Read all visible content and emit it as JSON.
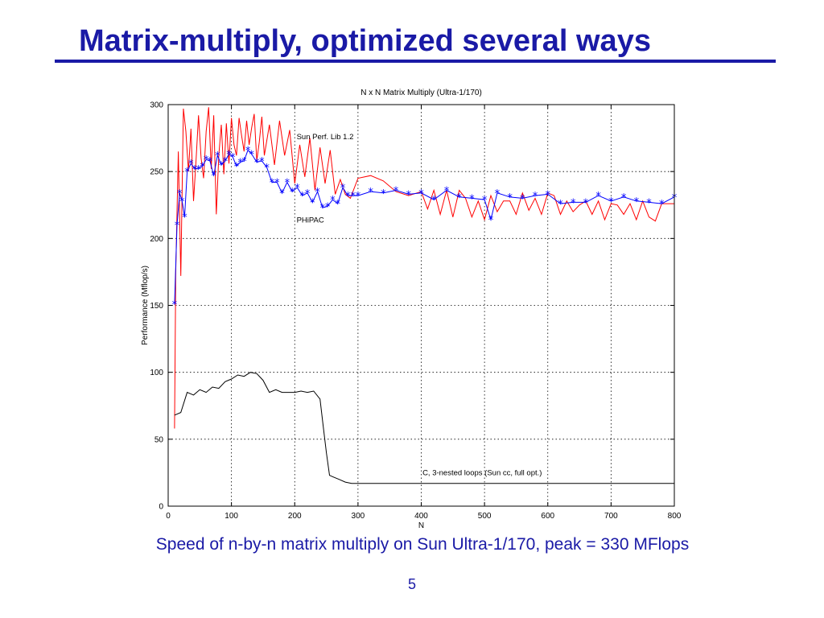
{
  "slide": {
    "title": "Matrix-multiply, optimized several ways",
    "caption": "Speed of n-by-n matrix multiply on Sun Ultra-1/170, peak = 330 MFlops",
    "page_number": "5"
  },
  "chart_data": {
    "type": "line",
    "title": "N x N Matrix Multiply (Ultra-1/170)",
    "xlabel": "N",
    "ylabel": "Performance (Mflop/s)",
    "xlim": [
      0,
      800
    ],
    "ylim": [
      0,
      300
    ],
    "xticks": [
      0,
      100,
      200,
      300,
      400,
      500,
      600,
      700,
      800
    ],
    "yticks": [
      0,
      50,
      100,
      150,
      200,
      250,
      300
    ],
    "grid": true,
    "series": [
      {
        "name": "Sun Perf. Lib 1.2",
        "color": "#ff0000",
        "marker": "none",
        "x": [
          10,
          12,
          16,
          20,
          24,
          28,
          32,
          36,
          40,
          44,
          48,
          52,
          56,
          60,
          64,
          68,
          72,
          76,
          80,
          84,
          88,
          92,
          96,
          100,
          104,
          108,
          112,
          116,
          120,
          124,
          128,
          132,
          136,
          140,
          144,
          148,
          152,
          160,
          168,
          176,
          184,
          192,
          200,
          208,
          216,
          224,
          232,
          240,
          248,
          256,
          264,
          272,
          280,
          288,
          300,
          320,
          340,
          360,
          380,
          400,
          410,
          420,
          430,
          440,
          450,
          460,
          470,
          480,
          490,
          500,
          510,
          520,
          530,
          540,
          550,
          560,
          570,
          580,
          590,
          600,
          610,
          620,
          630,
          640,
          650,
          660,
          670,
          680,
          690,
          700,
          710,
          720,
          730,
          740,
          750,
          760,
          770,
          780,
          790,
          800
        ],
        "y": [
          58,
          175,
          265,
          172,
          297,
          280,
          250,
          282,
          228,
          258,
          292,
          260,
          245,
          280,
          298,
          252,
          292,
          218,
          262,
          285,
          248,
          286,
          256,
          290,
          270,
          262,
          290,
          277,
          265,
          288,
          270,
          283,
          293,
          258,
          272,
          291,
          262,
          285,
          255,
          288,
          262,
          281,
          241,
          270,
          246,
          275,
          236,
          268,
          241,
          266,
          233,
          244,
          233,
          230,
          245,
          247,
          243,
          235,
          232,
          235,
          222,
          236,
          218,
          236,
          216,
          236,
          230,
          216,
          228,
          214,
          232,
          220,
          228,
          228,
          218,
          234,
          221,
          230,
          218,
          234,
          232,
          218,
          228,
          220,
          225,
          228,
          218,
          228,
          214,
          226,
          225,
          218,
          226,
          214,
          228,
          216,
          213,
          226,
          226,
          226
        ]
      },
      {
        "name": "PHiPAC",
        "color": "#0000ff",
        "marker": "*",
        "x": [
          10,
          14,
          18,
          22,
          26,
          30,
          36,
          42,
          48,
          54,
          60,
          66,
          72,
          78,
          84,
          90,
          96,
          102,
          108,
          114,
          120,
          126,
          132,
          140,
          148,
          156,
          164,
          172,
          180,
          188,
          196,
          204,
          212,
          220,
          228,
          236,
          244,
          252,
          260,
          268,
          276,
          284,
          292,
          300,
          320,
          340,
          360,
          380,
          400,
          420,
          440,
          460,
          480,
          500,
          510,
          520,
          540,
          560,
          580,
          600,
          620,
          640,
          660,
          680,
          700,
          720,
          740,
          760,
          780,
          800
        ],
        "y": [
          151,
          210,
          234,
          228,
          216,
          250,
          256,
          252,
          252,
          254,
          259,
          258,
          247,
          262,
          255,
          258,
          263,
          261,
          254,
          257,
          258,
          266,
          263,
          257,
          258,
          253,
          242,
          242,
          234,
          242,
          235,
          238,
          232,
          234,
          227,
          235,
          223,
          224,
          229,
          226,
          238,
          232,
          232,
          232,
          235,
          234,
          236,
          233,
          234,
          229,
          236,
          231,
          230,
          229,
          214,
          234,
          231,
          230,
          232,
          233,
          226,
          227,
          227,
          232,
          228,
          231,
          228,
          227,
          226,
          231
        ]
      },
      {
        "name": "C, 3-nested loops (Sun cc, full opt.)",
        "color": "#000000",
        "marker": "none",
        "x": [
          10,
          20,
          30,
          40,
          50,
          60,
          70,
          80,
          90,
          100,
          110,
          120,
          130,
          140,
          150,
          160,
          170,
          180,
          190,
          200,
          210,
          220,
          230,
          240,
          245,
          250,
          255,
          260,
          270,
          280,
          290,
          300,
          350,
          400,
          450,
          500,
          550,
          600,
          650,
          700,
          750,
          800
        ],
        "y": [
          68,
          70,
          85,
          83,
          87,
          85,
          89,
          88,
          93,
          95,
          98,
          97,
          100,
          99,
          94,
          85,
          87,
          85,
          85,
          85,
          86,
          85,
          86,
          80,
          60,
          40,
          23,
          22,
          20,
          18,
          17,
          17,
          17,
          17,
          17,
          17,
          17,
          17,
          17,
          17,
          17,
          17
        ]
      }
    ],
    "annotations": [
      {
        "text": "Sun Perf. Lib 1.2",
        "x": 203,
        "y": 274
      },
      {
        "text": "PHiPAC",
        "x": 203,
        "y": 212
      },
      {
        "text": "C, 3-nested loops (Sun cc, full opt.)",
        "x": 402,
        "y": 23
      }
    ]
  }
}
